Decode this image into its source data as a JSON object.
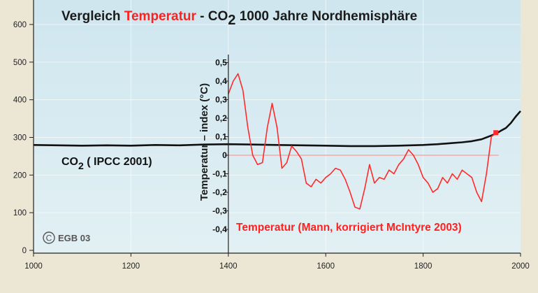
{
  "title": {
    "part1": "Vergleich ",
    "part2": "Temperatur",
    "part3": " - CO",
    "sub": "2",
    "part4": "  1000 Jahre Nordhemisphäre"
  },
  "colors": {
    "background": "#ece7d5",
    "plot_area": "#d6ebf2",
    "co2_line": "#111111",
    "temperature_line": "#ff2a2a",
    "temperature_zero_line": "#f7a8a8",
    "title_text": "#1a1a1a",
    "title_accent": "#ff2020",
    "axis_text": "#222222"
  },
  "labels": {
    "co2_label_main": "CO",
    "co2_label_sub": "2",
    "co2_label_rest": " ( IPCC 2001)",
    "temp_label": "Temperatur (Mann, korrigiert McIntyre 2003)",
    "copyright": "EGB 03",
    "copyright_symbol": "C"
  },
  "chart_data": [
    {
      "type": "line",
      "series": [
        {
          "name": "CO2 ( IPCC 2001)",
          "x": [
            1000,
            1050,
            1100,
            1150,
            1200,
            1250,
            1300,
            1350,
            1400,
            1450,
            1500,
            1550,
            1600,
            1650,
            1700,
            1750,
            1800,
            1830,
            1860,
            1880,
            1900,
            1920,
            1940,
            1950,
            1960,
            1970,
            1980,
            1990,
            2000
          ],
          "y": [
            280,
            279,
            278,
            279,
            278,
            280,
            279,
            281,
            282,
            281,
            280,
            279,
            278,
            277,
            277,
            278,
            280,
            282,
            285,
            287,
            290,
            295,
            305,
            310,
            318,
            325,
            338,
            355,
            370
          ]
        }
      ],
      "xlim": [
        1000,
        2000
      ],
      "ylim": [
        0,
        650
      ],
      "x_ticks": [
        1000,
        1200,
        1400,
        1600,
        1800,
        2000
      ],
      "y_ticks": [
        0,
        100,
        200,
        300,
        400,
        500,
        600
      ],
      "grid": true
    },
    {
      "type": "line",
      "series": [
        {
          "name": "Temperatur (Mann, korrigiert McIntyre 2003)",
          "x": [
            1400,
            1410,
            1420,
            1430,
            1440,
            1450,
            1460,
            1470,
            1480,
            1490,
            1500,
            1510,
            1520,
            1530,
            1540,
            1550,
            1560,
            1570,
            1580,
            1590,
            1600,
            1610,
            1620,
            1630,
            1640,
            1650,
            1660,
            1670,
            1680,
            1690,
            1700,
            1710,
            1720,
            1730,
            1740,
            1750,
            1760,
            1770,
            1780,
            1790,
            1800,
            1810,
            1820,
            1830,
            1840,
            1850,
            1860,
            1870,
            1880,
            1890,
            1900,
            1910,
            1920,
            1930,
            1940,
            1950
          ],
          "y": [
            0.33,
            0.4,
            0.44,
            0.35,
            0.15,
            0.0,
            -0.05,
            -0.04,
            0.15,
            0.28,
            0.15,
            -0.07,
            -0.04,
            0.05,
            0.02,
            -0.02,
            -0.15,
            -0.17,
            -0.13,
            -0.15,
            -0.12,
            -0.1,
            -0.07,
            -0.08,
            -0.13,
            -0.2,
            -0.28,
            -0.29,
            -0.18,
            -0.05,
            -0.15,
            -0.12,
            -0.13,
            -0.08,
            -0.1,
            -0.05,
            -0.02,
            0.03,
            0.0,
            -0.05,
            -0.12,
            -0.15,
            -0.2,
            -0.18,
            -0.12,
            -0.15,
            -0.1,
            -0.13,
            -0.08,
            -0.1,
            -0.12,
            -0.2,
            -0.25,
            -0.1,
            0.1,
            0.12
          ]
        }
      ],
      "xlim": [
        1400,
        1950
      ],
      "ylim": [
        -0.4,
        0.5
      ],
      "y_ticks": [
        0.5,
        0.4,
        0.3,
        0.2,
        0.1,
        0,
        -0.1,
        -0.2,
        -0.3,
        -0.4
      ],
      "y_tick_labels": [
        "0,5",
        "0,4",
        "0,3",
        "0,2",
        "0,1",
        "0",
        "-0,1",
        "-0,2",
        "-0,3",
        "-0,4"
      ],
      "ylabel": "Temperatur – index (°C)"
    }
  ]
}
